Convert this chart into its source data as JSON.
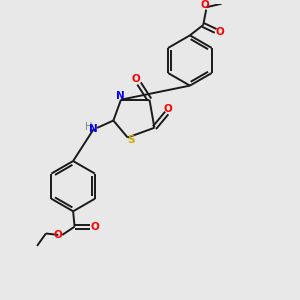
{
  "bg_color": "#e8e8e8",
  "bond_color": "#1a1a1a",
  "n_color": "#0000ff",
  "s_color": "#ccaa00",
  "o_color": "#ff0000",
  "h_color": "#808080",
  "lw": 1.4,
  "figsize": [
    3.0,
    3.0
  ],
  "dpi": 100,
  "xlim": [
    0,
    10
  ],
  "ylim": [
    0,
    10
  ]
}
